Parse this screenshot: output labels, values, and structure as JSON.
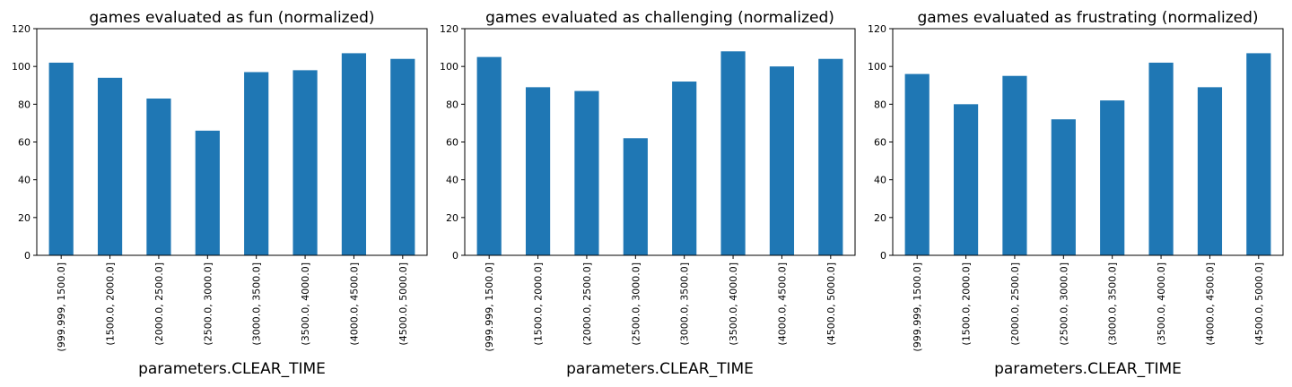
{
  "chart_data": [
    {
      "type": "bar",
      "title": "games evaluated as fun (normalized)",
      "xlabel": "parameters.CLEAR_TIME",
      "ylabel": "",
      "categories": [
        "(999.999, 1500.0]",
        "(1500.0, 2000.0]",
        "(2000.0, 2500.0]",
        "(2500.0, 3000.0]",
        "(3000.0, 3500.0]",
        "(3500.0, 4000.0]",
        "(4000.0, 4500.0]",
        "(4500.0, 5000.0]"
      ],
      "values": [
        102,
        94,
        83,
        66,
        97,
        98,
        107,
        104
      ],
      "ylim": [
        0,
        120
      ],
      "yticks": [
        0,
        20,
        40,
        60,
        80,
        100,
        120
      ],
      "color": "#1f77b4",
      "grid": false,
      "legend": false
    },
    {
      "type": "bar",
      "title": "games evaluated as challenging (normalized)",
      "xlabel": "parameters.CLEAR_TIME",
      "ylabel": "",
      "categories": [
        "(999.999, 1500.0]",
        "(1500.0, 2000.0]",
        "(2000.0, 2500.0]",
        "(2500.0, 3000.0]",
        "(3000.0, 3500.0]",
        "(3500.0, 4000.0]",
        "(4000.0, 4500.0]",
        "(4500.0, 5000.0]"
      ],
      "values": [
        105,
        89,
        87,
        62,
        92,
        108,
        100,
        104
      ],
      "ylim": [
        0,
        120
      ],
      "yticks": [
        0,
        20,
        40,
        60,
        80,
        100,
        120
      ],
      "color": "#1f77b4",
      "grid": false,
      "legend": false
    },
    {
      "type": "bar",
      "title": "games evaluated as frustrating (normalized)",
      "xlabel": "parameters.CLEAR_TIME",
      "ylabel": "",
      "categories": [
        "(999.999, 1500.0]",
        "(1500.0, 2000.0]",
        "(2000.0, 2500.0]",
        "(2500.0, 3000.0]",
        "(3000.0, 3500.0]",
        "(3500.0, 4000.0]",
        "(4000.0, 4500.0]",
        "(4500.0, 5000.0]"
      ],
      "values": [
        96,
        80,
        95,
        72,
        82,
        102,
        89,
        107
      ],
      "ylim": [
        0,
        120
      ],
      "yticks": [
        0,
        20,
        40,
        60,
        80,
        100,
        120
      ],
      "color": "#1f77b4",
      "grid": false,
      "legend": false
    }
  ]
}
